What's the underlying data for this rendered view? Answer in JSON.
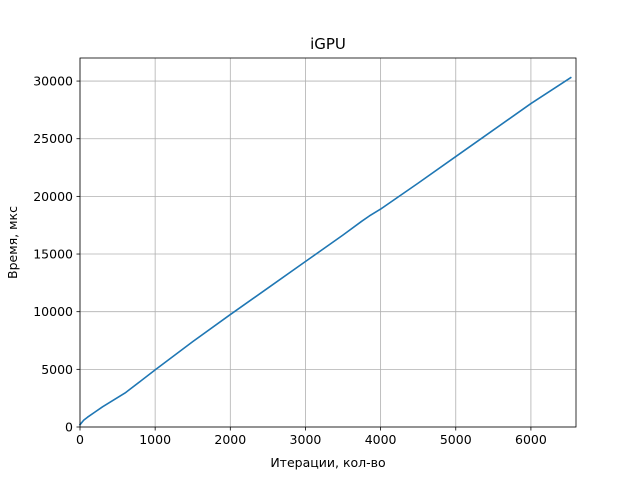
{
  "chart_data": {
    "type": "line",
    "title": "iGPU",
    "xlabel": "Итерации, кол-во",
    "ylabel": "Время, мкс",
    "xlim": [
      0,
      6600
    ],
    "ylim": [
      0,
      32000
    ],
    "xticks": [
      0,
      1000,
      2000,
      3000,
      4000,
      5000,
      6000
    ],
    "yticks": [
      0,
      5000,
      10000,
      15000,
      20000,
      25000,
      30000
    ],
    "grid": true,
    "series": [
      {
        "color": "#1f77b4",
        "x": [
          0,
          50,
          100,
          200,
          300,
          400,
          500,
          600,
          800,
          1000,
          1500,
          2000,
          2500,
          3000,
          3500,
          3750,
          3850,
          4000,
          4500,
          5000,
          5500,
          6000,
          6530
        ],
        "y": [
          200,
          600,
          850,
          1300,
          1750,
          2150,
          2550,
          2950,
          3950,
          4950,
          7400,
          9750,
          12050,
          14350,
          16650,
          17850,
          18300,
          18900,
          21150,
          23450,
          25750,
          28050,
          30300
        ]
      }
    ]
  }
}
